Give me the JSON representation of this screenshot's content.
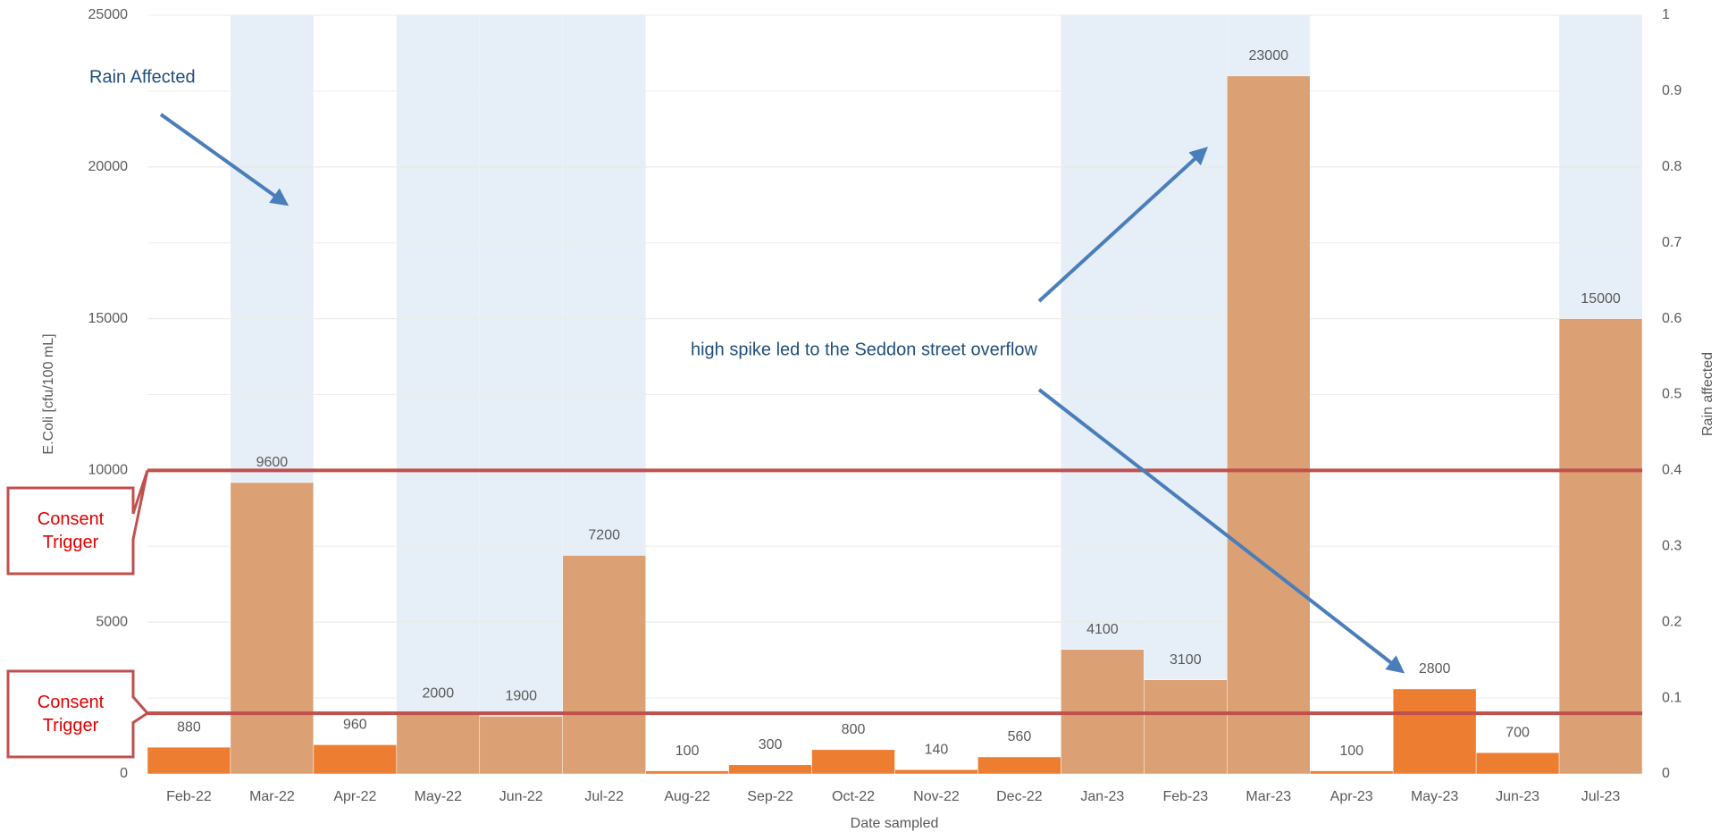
{
  "chart_data": {
    "type": "bar",
    "categories": [
      "Feb-22",
      "Mar-22",
      "Apr-22",
      "May-22",
      "Jun-22",
      "Jul-22",
      "Aug-22",
      "Sep-22",
      "Oct-22",
      "Nov-22",
      "Dec-22",
      "Jan-23",
      "Feb-23",
      "Mar-23",
      "Apr-23",
      "May-23",
      "Jun-23",
      "Jul-23"
    ],
    "series": [
      {
        "name": "E.Coli",
        "values": [
          880,
          9600,
          960,
          2000,
          1900,
          7200,
          100,
          300,
          800,
          140,
          560,
          4100,
          3100,
          23000,
          100,
          2800,
          700,
          15000
        ],
        "colors": {
          "rain": "#dba074",
          "dry": "#ed7d31"
        }
      },
      {
        "name": "Rain affected",
        "axis": "y2",
        "color": "#e6eff8",
        "values": [
          0,
          1,
          0,
          1,
          1,
          1,
          0,
          0,
          0,
          0,
          0,
          1,
          1,
          1,
          0,
          0,
          0,
          1
        ]
      }
    ],
    "ylim": [
      0,
      25000
    ],
    "yticks": [
      0,
      5000,
      10000,
      15000,
      20000,
      25000
    ],
    "y2lim": [
      0,
      1
    ],
    "y2ticks": [
      0,
      0.1,
      0.2,
      0.3,
      0.4,
      0.5,
      0.6,
      0.7,
      0.8,
      0.9,
      1
    ],
    "ylabel": "E.Coli [cfu/100 mL]",
    "y2label": "Rain affected",
    "xlabel": "Date sampled",
    "grid": true,
    "thresholds": [
      {
        "label": "Consent Trigger",
        "value": 10000,
        "color": "#c0504d"
      },
      {
        "label": "Consent Trigger",
        "value": 2000,
        "color": "#c0504d"
      }
    ],
    "annotations": [
      "Rain Affected",
      "high spike led to the Seddon street overflow"
    ]
  }
}
